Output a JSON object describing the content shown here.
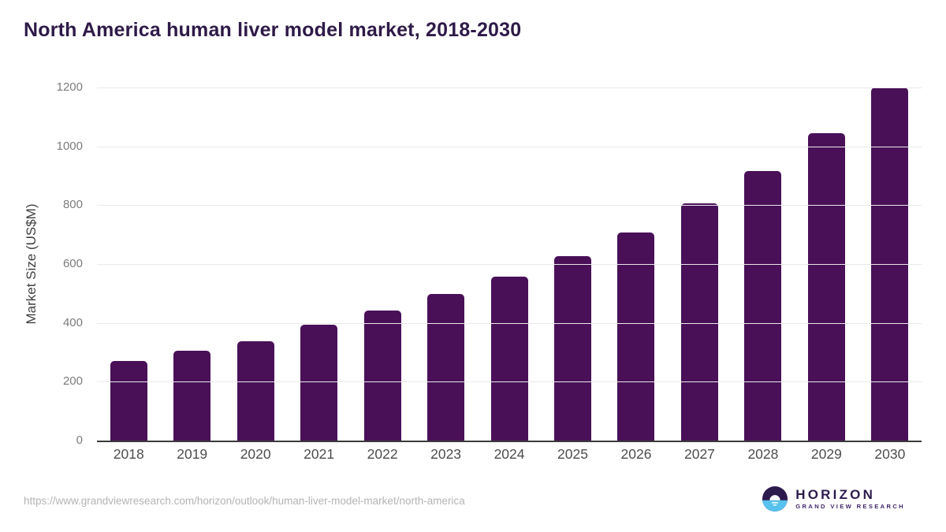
{
  "page": {
    "title": "North America human liver model market, 2018-2030",
    "source_url": "https://www.grandviewresearch.com/horizon/outlook/human-liver-model-market/north-america"
  },
  "chart_data": {
    "type": "bar",
    "title": "North America human liver model market, 2018-2030",
    "categories": [
      "2018",
      "2019",
      "2020",
      "2021",
      "2022",
      "2023",
      "2024",
      "2025",
      "2026",
      "2027",
      "2028",
      "2029",
      "2030"
    ],
    "values": [
      270,
      305,
      338,
      395,
      443,
      497,
      556,
      627,
      708,
      806,
      915,
      1045,
      1200
    ],
    "xlabel": "",
    "ylabel": "Market Size (US$M)",
    "ylim": [
      0,
      1200
    ],
    "yticks": [
      0,
      200,
      400,
      600,
      800,
      1000,
      1200
    ],
    "grid": true,
    "legend": false,
    "bar_color": "#491058"
  },
  "branding": {
    "logo_name": "HORIZON",
    "logo_subtext": "GRAND VIEW RESEARCH"
  },
  "colors": {
    "title": "#2e1a47",
    "bar": "#491058",
    "gridline": "#e9e9e9",
    "axis_line": "#3b3b3b",
    "y_tick_text": "#7c7c7c",
    "x_tick_text": "#4d4d4d",
    "source_text": "#b4b4b4",
    "logo_purple": "#2d1b4e",
    "logo_blue": "#56c2ee"
  }
}
